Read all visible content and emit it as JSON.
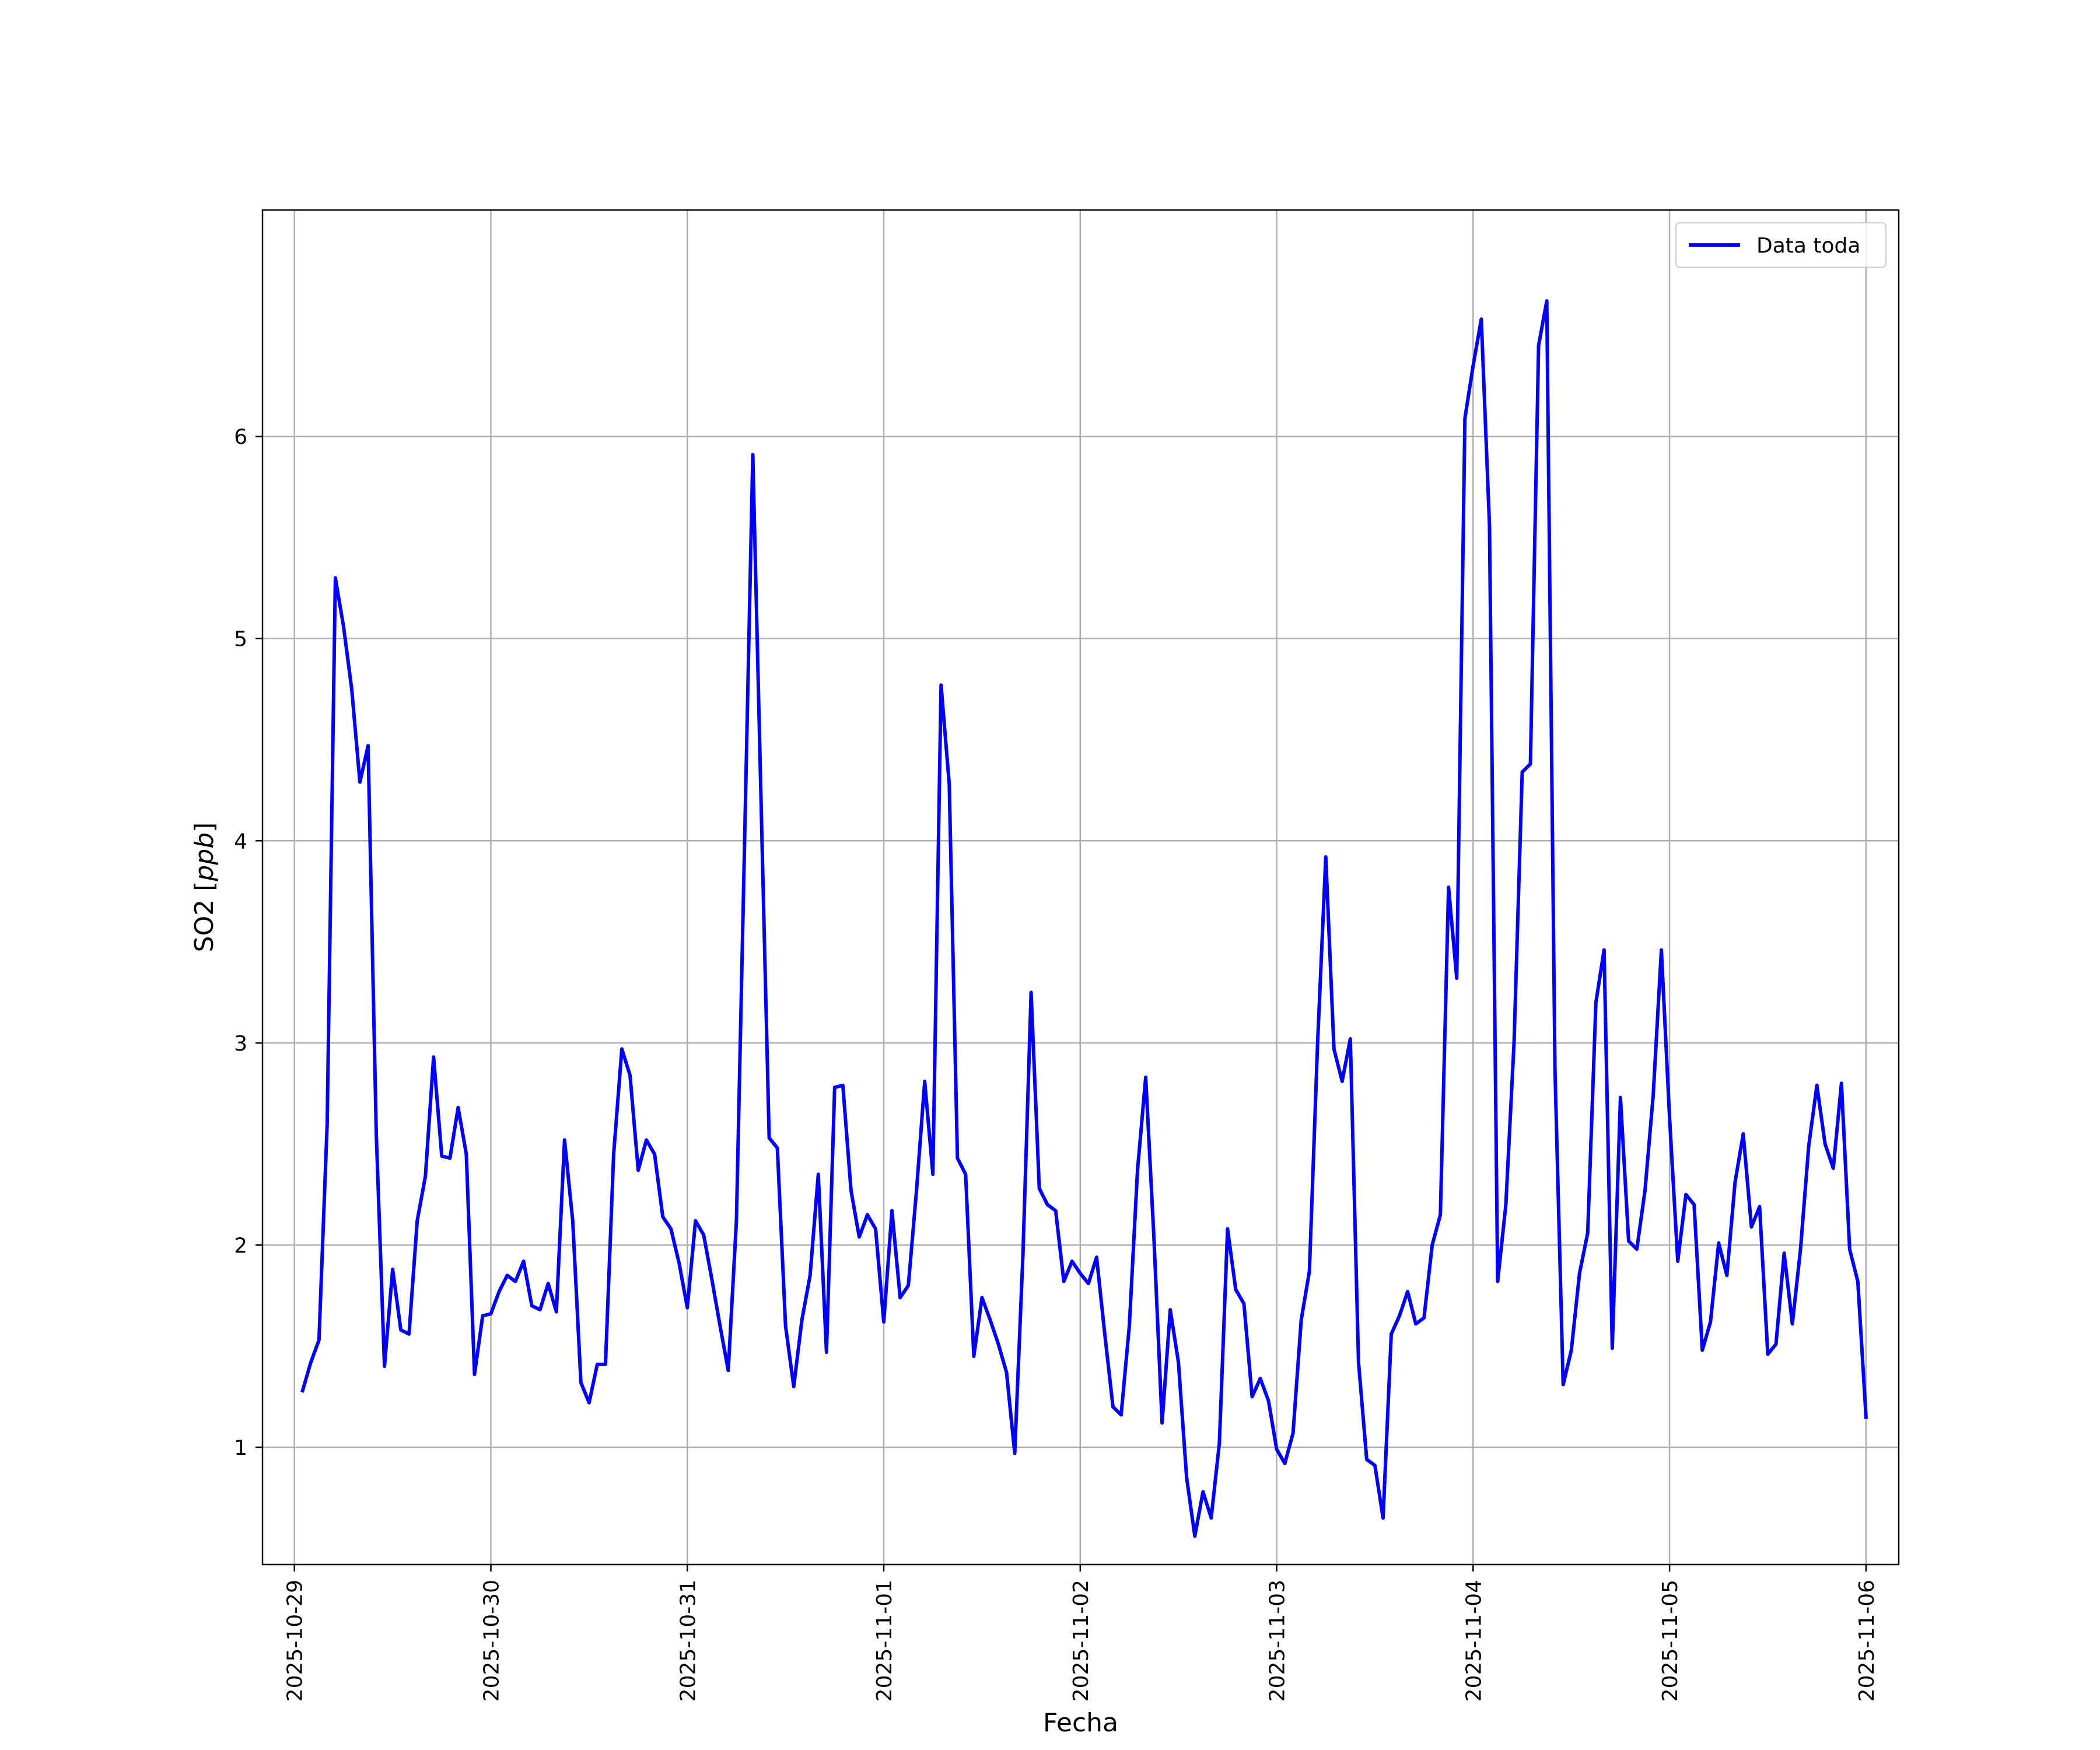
{
  "chart_data": {
    "type": "line",
    "xlabel": "Fecha",
    "ylabel_text": "SO2 [",
    "ylabel_unit": "ppb",
    "ylabel_close": "]",
    "x_tick_labels": [
      "2025-10-29",
      "2025-10-30",
      "2025-10-31",
      "2025-11-01",
      "2025-11-02",
      "2025-11-03",
      "2025-11-04",
      "2025-11-05",
      "2025-11-06"
    ],
    "y_ticks": [
      1,
      2,
      3,
      4,
      5,
      6
    ],
    "xlim": [
      "2025-10-28T20:06:00",
      "2025-11-06T04:00:00"
    ],
    "ylim": [
      0.42,
      7.12
    ],
    "grid": true,
    "legend": "top-right",
    "series": [
      {
        "name": "Data toda",
        "color": "#0000ff",
        "step_hours": 1,
        "start": "2025-10-29T01:00:00",
        "values": [
          1.28,
          1.42,
          1.53,
          2.6,
          5.3,
          5.06,
          4.75,
          4.29,
          4.47,
          2.55,
          1.4,
          1.88,
          1.58,
          1.56,
          2.12,
          2.34,
          2.93,
          2.44,
          2.43,
          2.68,
          2.45,
          1.36,
          1.65,
          1.66,
          1.77,
          1.85,
          1.82,
          1.92,
          1.7,
          1.68,
          1.81,
          1.67,
          2.52,
          2.12,
          1.32,
          1.22,
          1.41,
          1.41,
          2.45,
          2.97,
          2.84,
          2.37,
          2.52,
          2.45,
          2.14,
          2.08,
          1.91,
          1.69,
          2.12,
          2.05,
          1.83,
          1.6,
          1.38,
          2.12,
          4.0,
          5.91,
          4.21,
          2.53,
          2.48,
          1.6,
          1.3,
          1.63,
          1.85,
          2.35,
          1.47,
          2.78,
          2.79,
          2.27,
          2.04,
          2.15,
          2.08,
          1.62,
          2.17,
          1.74,
          1.8,
          2.27,
          2.81,
          2.35,
          4.77,
          4.28,
          2.43,
          2.35,
          1.45,
          1.74,
          1.63,
          1.51,
          1.37,
          0.97,
          1.95,
          3.25,
          2.28,
          2.2,
          2.17,
          1.82,
          1.92,
          1.86,
          1.81,
          1.94,
          1.56,
          1.2,
          1.16,
          1.6,
          2.37,
          2.83,
          2.04,
          1.12,
          1.68,
          1.42,
          0.85,
          0.56,
          0.78,
          0.65,
          1.02,
          2.08,
          1.78,
          1.71,
          1.25,
          1.34,
          1.23,
          0.99,
          0.92,
          1.07,
          1.63,
          1.87,
          3.0,
          3.92,
          2.97,
          2.81,
          3.02,
          1.42,
          0.94,
          0.91,
          0.65,
          1.56,
          1.65,
          1.77,
          1.61,
          1.64,
          2.0,
          2.15,
          3.77,
          3.32,
          6.09,
          6.35,
          6.58,
          5.56,
          1.82,
          2.2,
          3.0,
          4.34,
          4.38,
          6.45,
          6.67,
          2.87,
          1.31,
          1.48,
          1.86,
          2.06,
          3.2,
          3.46,
          1.49,
          2.73,
          2.02,
          1.98,
          2.27,
          2.74,
          3.46,
          2.63,
          1.92,
          2.25,
          2.2,
          1.48,
          1.62,
          2.01,
          1.85,
          2.31,
          2.55,
          2.09,
          2.19,
          1.46,
          1.51,
          1.96,
          1.61,
          1.98,
          2.49,
          2.79,
          2.5,
          2.38,
          2.8,
          1.98,
          1.82,
          1.15
        ]
      }
    ]
  }
}
